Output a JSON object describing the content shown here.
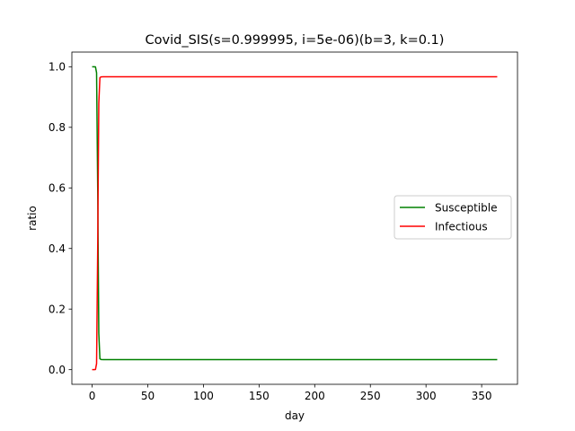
{
  "chart_data": {
    "type": "line",
    "title": "Covid_SIS(s=0.999995, i=5e-06)(b=3, k=0.1)",
    "xlabel": "day",
    "ylabel": "ratio",
    "xlim": [
      -18.2,
      382.2
    ],
    "ylim": [
      -0.0484,
      1.0484
    ],
    "xticks": [
      0,
      50,
      100,
      150,
      200,
      250,
      300,
      350
    ],
    "yticks": [
      0.0,
      0.2,
      0.4,
      0.6,
      0.8,
      1.0
    ],
    "xtick_labels": [
      "0",
      "50",
      "100",
      "150",
      "200",
      "250",
      "300",
      "350"
    ],
    "ytick_labels": [
      "0.0",
      "0.2",
      "0.4",
      "0.6",
      "0.8",
      "1.0"
    ],
    "grid": false,
    "legend_position": "center-right",
    "series": [
      {
        "name": "Susceptible",
        "color": "#008000",
        "x": [
          0,
          1,
          2,
          3,
          4,
          5,
          6,
          7,
          8,
          10,
          20,
          50,
          100,
          200,
          300,
          364
        ],
        "y": [
          0.999995,
          0.99998,
          0.9999,
          0.9995,
          0.98,
          0.6,
          0.12,
          0.036,
          0.0334,
          0.0333,
          0.0333,
          0.0333,
          0.0333,
          0.0333,
          0.0333,
          0.0333
        ]
      },
      {
        "name": "Infectious",
        "color": "#ff0000",
        "x": [
          0,
          1,
          2,
          3,
          4,
          5,
          6,
          7,
          8,
          10,
          20,
          50,
          100,
          200,
          300,
          364
        ],
        "y": [
          5e-06,
          2e-05,
          0.0001,
          0.0005,
          0.02,
          0.4,
          0.88,
          0.964,
          0.9666,
          0.9667,
          0.9667,
          0.9667,
          0.9667,
          0.9667,
          0.9667,
          0.9667
        ]
      }
    ]
  }
}
